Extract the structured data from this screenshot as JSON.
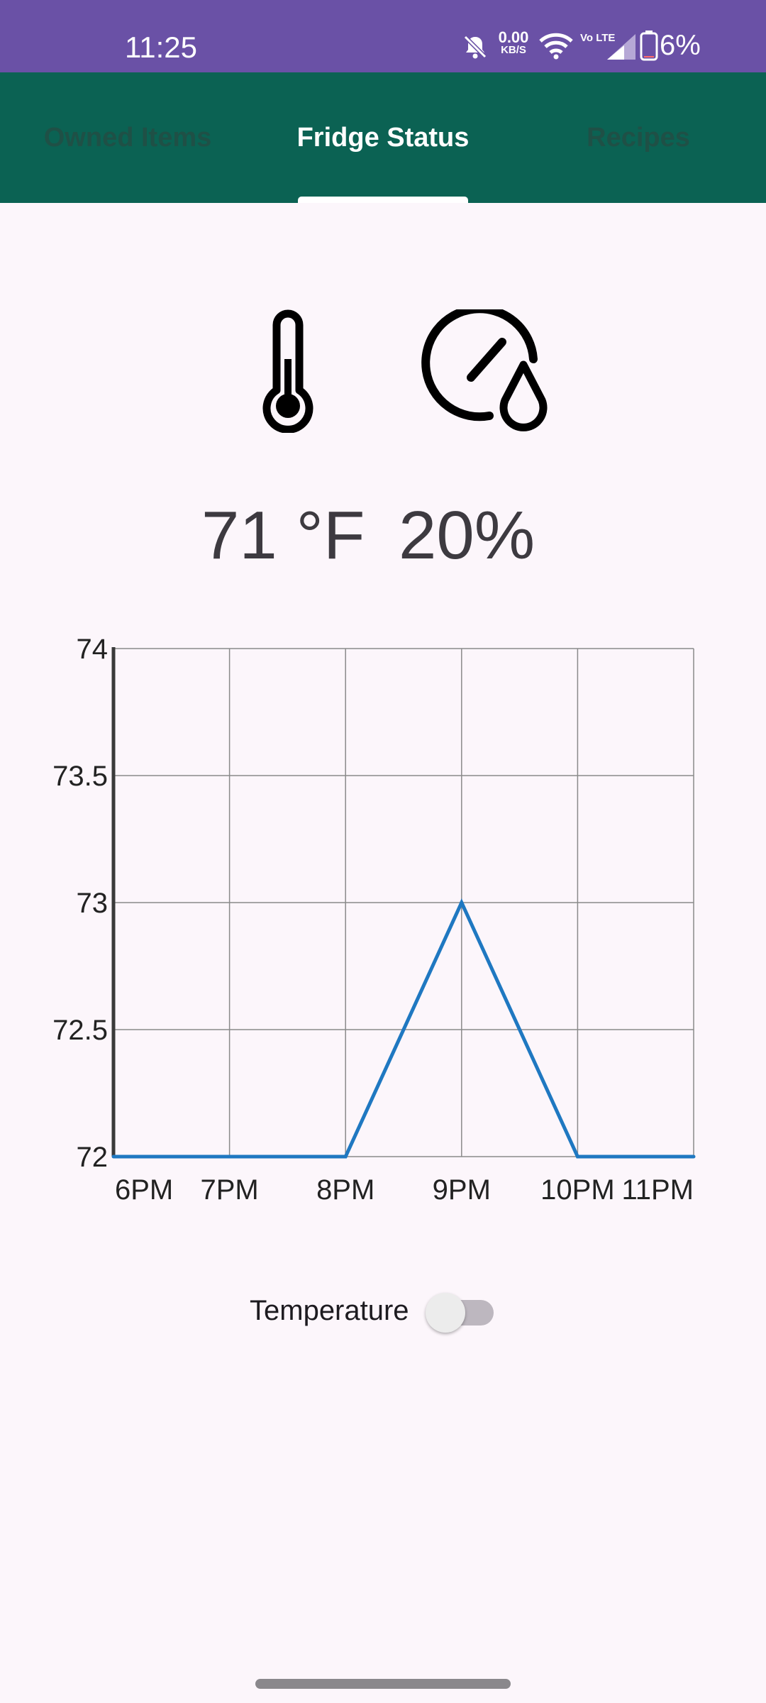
{
  "status_bar": {
    "time": "11:25",
    "net_speed_value": "0.00",
    "net_speed_unit": "KB/S",
    "volte": "Vo LTE",
    "battery": "6%"
  },
  "tabs": [
    {
      "label": "Owned Items",
      "selected": false
    },
    {
      "label": "Fridge Status",
      "selected": true
    },
    {
      "label": "Recipes",
      "selected": false
    }
  ],
  "readings": {
    "temperature": "71 °F",
    "humidity": "20%"
  },
  "icons": {
    "temperature": "thermometer-icon",
    "humidity": "humidity-gauge-icon"
  },
  "chart_data": {
    "type": "line",
    "categories": [
      "6PM",
      "7PM",
      "8PM",
      "9PM",
      "10PM",
      "11PM"
    ],
    "x_tick_labels": [
      "6PM",
      "7PM",
      "8PM",
      "9PM",
      "10PM",
      "11PM"
    ],
    "y_tick_labels": [
      "74",
      "73.5",
      "73",
      "72.5",
      "72"
    ],
    "series": [
      {
        "values": [
          72,
          72,
          72,
          73,
          72,
          72
        ],
        "color": "#1f78c1"
      }
    ],
    "ylim": [
      72,
      74
    ],
    "grid": true
  },
  "toggle": {
    "label": "Temperature",
    "on": false
  }
}
